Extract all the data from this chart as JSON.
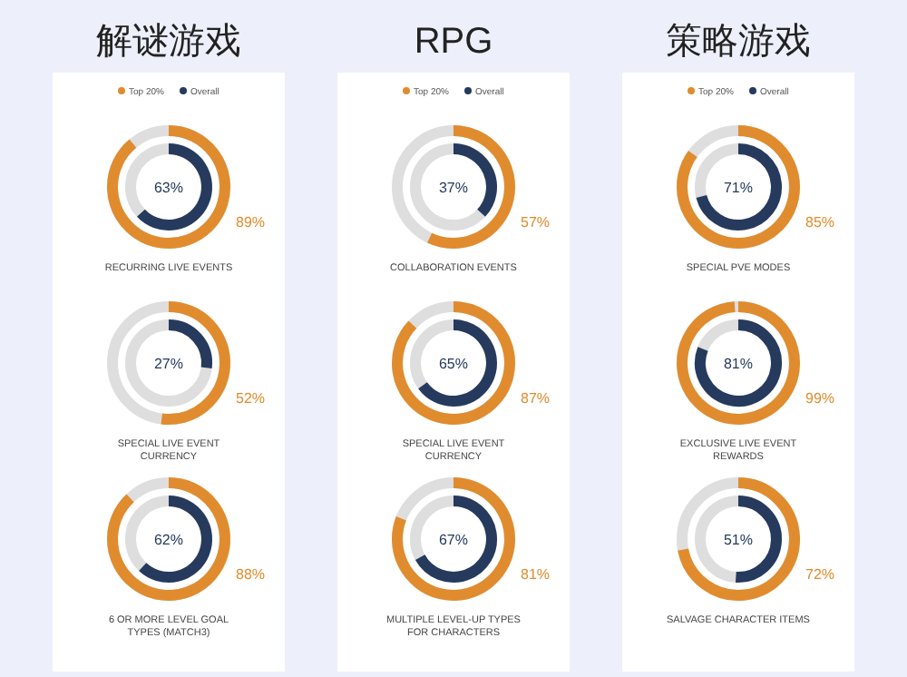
{
  "chart_data": [
    {
      "type": "other",
      "title": "解谜游戏",
      "categories": [
        "RECURRING LIVE EVENTS",
        "SPECIAL LIVE EVENT CURRENCY",
        "6 OR MORE LEVEL GOAL TYPES (MATCH3)"
      ],
      "legend": "top",
      "series": [
        {
          "name": "Top 20%",
          "color": "#e08c2e",
          "values": [
            89,
            52,
            88
          ],
          "value_labels": [
            "89%",
            "52%",
            "88%"
          ]
        },
        {
          "name": "Overall",
          "color": "#263a5e",
          "values": [
            63,
            27,
            62
          ],
          "value_labels": [
            "63%",
            "27%",
            "62%"
          ]
        }
      ]
    },
    {
      "type": "other",
      "title": "RPG",
      "categories": [
        "COLLABORATION EVENTS",
        "SPECIAL LIVE EVENT CURRENCY",
        "MULTIPLE LEVEL-UP TYPES FOR CHARACTERS"
      ],
      "legend": "top",
      "series": [
        {
          "name": "Top 20%",
          "color": "#e08c2e",
          "values": [
            57,
            87,
            81
          ],
          "value_labels": [
            "57%",
            "87%",
            "81%"
          ]
        },
        {
          "name": "Overall",
          "color": "#263a5e",
          "values": [
            37,
            65,
            67
          ],
          "value_labels": [
            "37%",
            "65%",
            "67%"
          ]
        }
      ]
    },
    {
      "type": "other",
      "title": "策略游戏",
      "categories": [
        "SPECIAL PVE MODES",
        "EXCLUSIVE LIVE EVENT REWARDS",
        "SALVAGE CHARACTER ITEMS"
      ],
      "legend": "top",
      "series": [
        {
          "name": "Top 20%",
          "color": "#e08c2e",
          "values": [
            85,
            99,
            72
          ],
          "value_labels": [
            "85%",
            "99%",
            "72%"
          ]
        },
        {
          "name": "Overall",
          "color": "#263a5e",
          "values": [
            71,
            81,
            51
          ],
          "value_labels": [
            "71%",
            "81%",
            "51%"
          ]
        }
      ]
    }
  ]
}
